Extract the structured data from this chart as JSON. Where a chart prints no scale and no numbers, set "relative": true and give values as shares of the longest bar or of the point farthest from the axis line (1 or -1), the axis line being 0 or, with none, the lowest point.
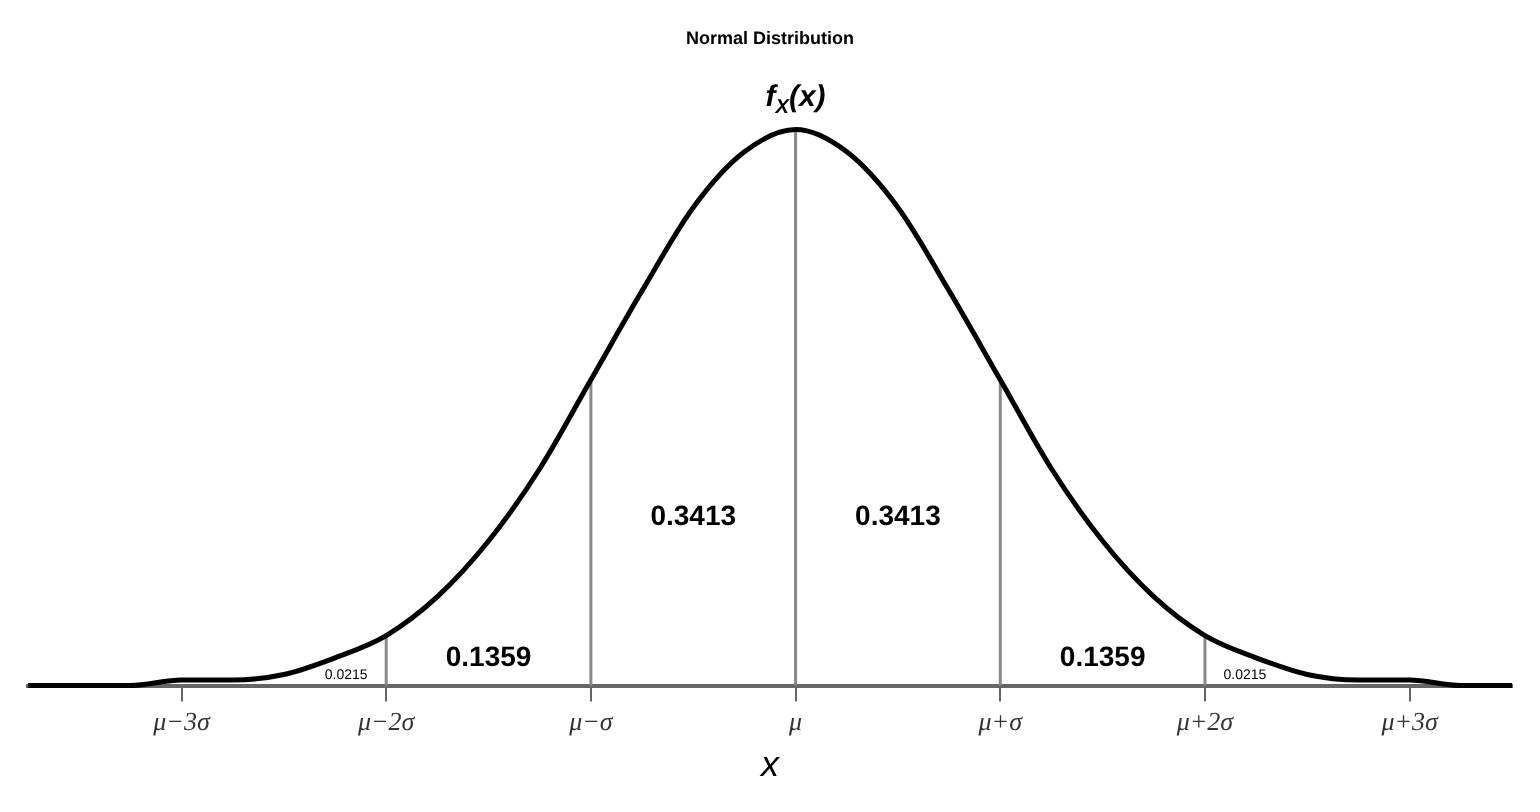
{
  "chart_data": {
    "type": "line",
    "title": "Normal Distribution",
    "xlabel": "x",
    "ylabel": "f$_{X}$(x)",
    "relative": true,
    "categories": [
      null,
      null,
      null,
      "μ−3σ",
      null,
      null,
      null,
      "μ−2σ",
      null,
      null,
      null,
      "μ−σ",
      null,
      null,
      null,
      "μ",
      null,
      null,
      null,
      "μ+σ",
      null,
      null,
      null,
      "μ+2σ",
      null,
      null,
      null,
      "μ+3σ",
      null,
      null
    ],
    "series": [
      {
        "color": "#000000",
        "values": [
          0,
          0,
          0,
          0.01,
          0.01,
          0.02,
          0.05,
          0.09,
          0.16,
          0.26,
          0.39,
          0.55,
          0.71,
          0.86,
          0.96,
          1,
          0.96,
          0.86,
          0.71,
          0.55,
          0.39,
          0.26,
          0.16,
          0.09,
          0.05,
          0.02,
          0.01,
          0.01,
          0,
          0
        ]
      }
    ],
    "ref_lines": [
      {
        "axis": "x",
        "value": "μ−2σ",
        "color": "#888888"
      },
      {
        "axis": "x",
        "value": "μ−σ",
        "color": "#888888"
      },
      {
        "axis": "x",
        "value": "μ",
        "color": "#888888"
      },
      {
        "axis": "x",
        "value": "μ+σ",
        "color": "#888888"
      },
      {
        "axis": "x",
        "value": "μ+2σ",
        "color": "#888888"
      }
    ],
    "annotations": [
      "0.0215",
      "0.1359",
      "0.3413",
      "0.3413",
      "0.1359",
      "0.0215"
    ],
    "grid": false,
    "legend": false,
    "marker": "none",
    "line_style": "solid"
  }
}
